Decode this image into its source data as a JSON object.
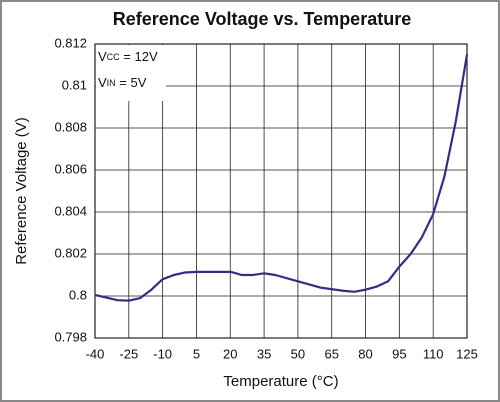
{
  "chart_data": {
    "type": "line",
    "title": "Reference Voltage vs. Temperature",
    "x_label": "Temperature (°C)",
    "y_label": "Reference Voltage (V)",
    "annotations": [
      {
        "main": "V",
        "sub": "CC",
        "rest": " = 12V"
      },
      {
        "main": "V",
        "sub": "IN",
        "rest": " = 5V"
      }
    ],
    "color": "#2f2f86",
    "grid": true,
    "x": [
      -40,
      -30,
      -25,
      -20,
      -15,
      -10,
      -5,
      0,
      5,
      10,
      20,
      22,
      25,
      30,
      35,
      40,
      50,
      60,
      70,
      75,
      80,
      85,
      90,
      95,
      100,
      105,
      110,
      115,
      120,
      125
    ],
    "values": [
      0.80005,
      0.7998,
      0.79978,
      0.7999,
      0.8003,
      0.8008,
      0.801,
      0.80112,
      0.80115,
      0.80115,
      0.80115,
      0.8011,
      0.801,
      0.801,
      0.80108,
      0.801,
      0.8007,
      0.8004,
      0.80025,
      0.8002,
      0.8003,
      0.80045,
      0.8007,
      0.8014,
      0.802,
      0.8028,
      0.8039,
      0.8057,
      0.8083,
      0.8115
    ],
    "xlim": [
      -40,
      125
    ],
    "xticks": [
      -40,
      -25,
      -10,
      5,
      20,
      35,
      50,
      65,
      80,
      95,
      110,
      125
    ],
    "ylim": [
      0.798,
      0.812
    ],
    "yticks": [
      0.798,
      0.8,
      0.802,
      0.804,
      0.806,
      0.808,
      0.81,
      0.812
    ]
  }
}
